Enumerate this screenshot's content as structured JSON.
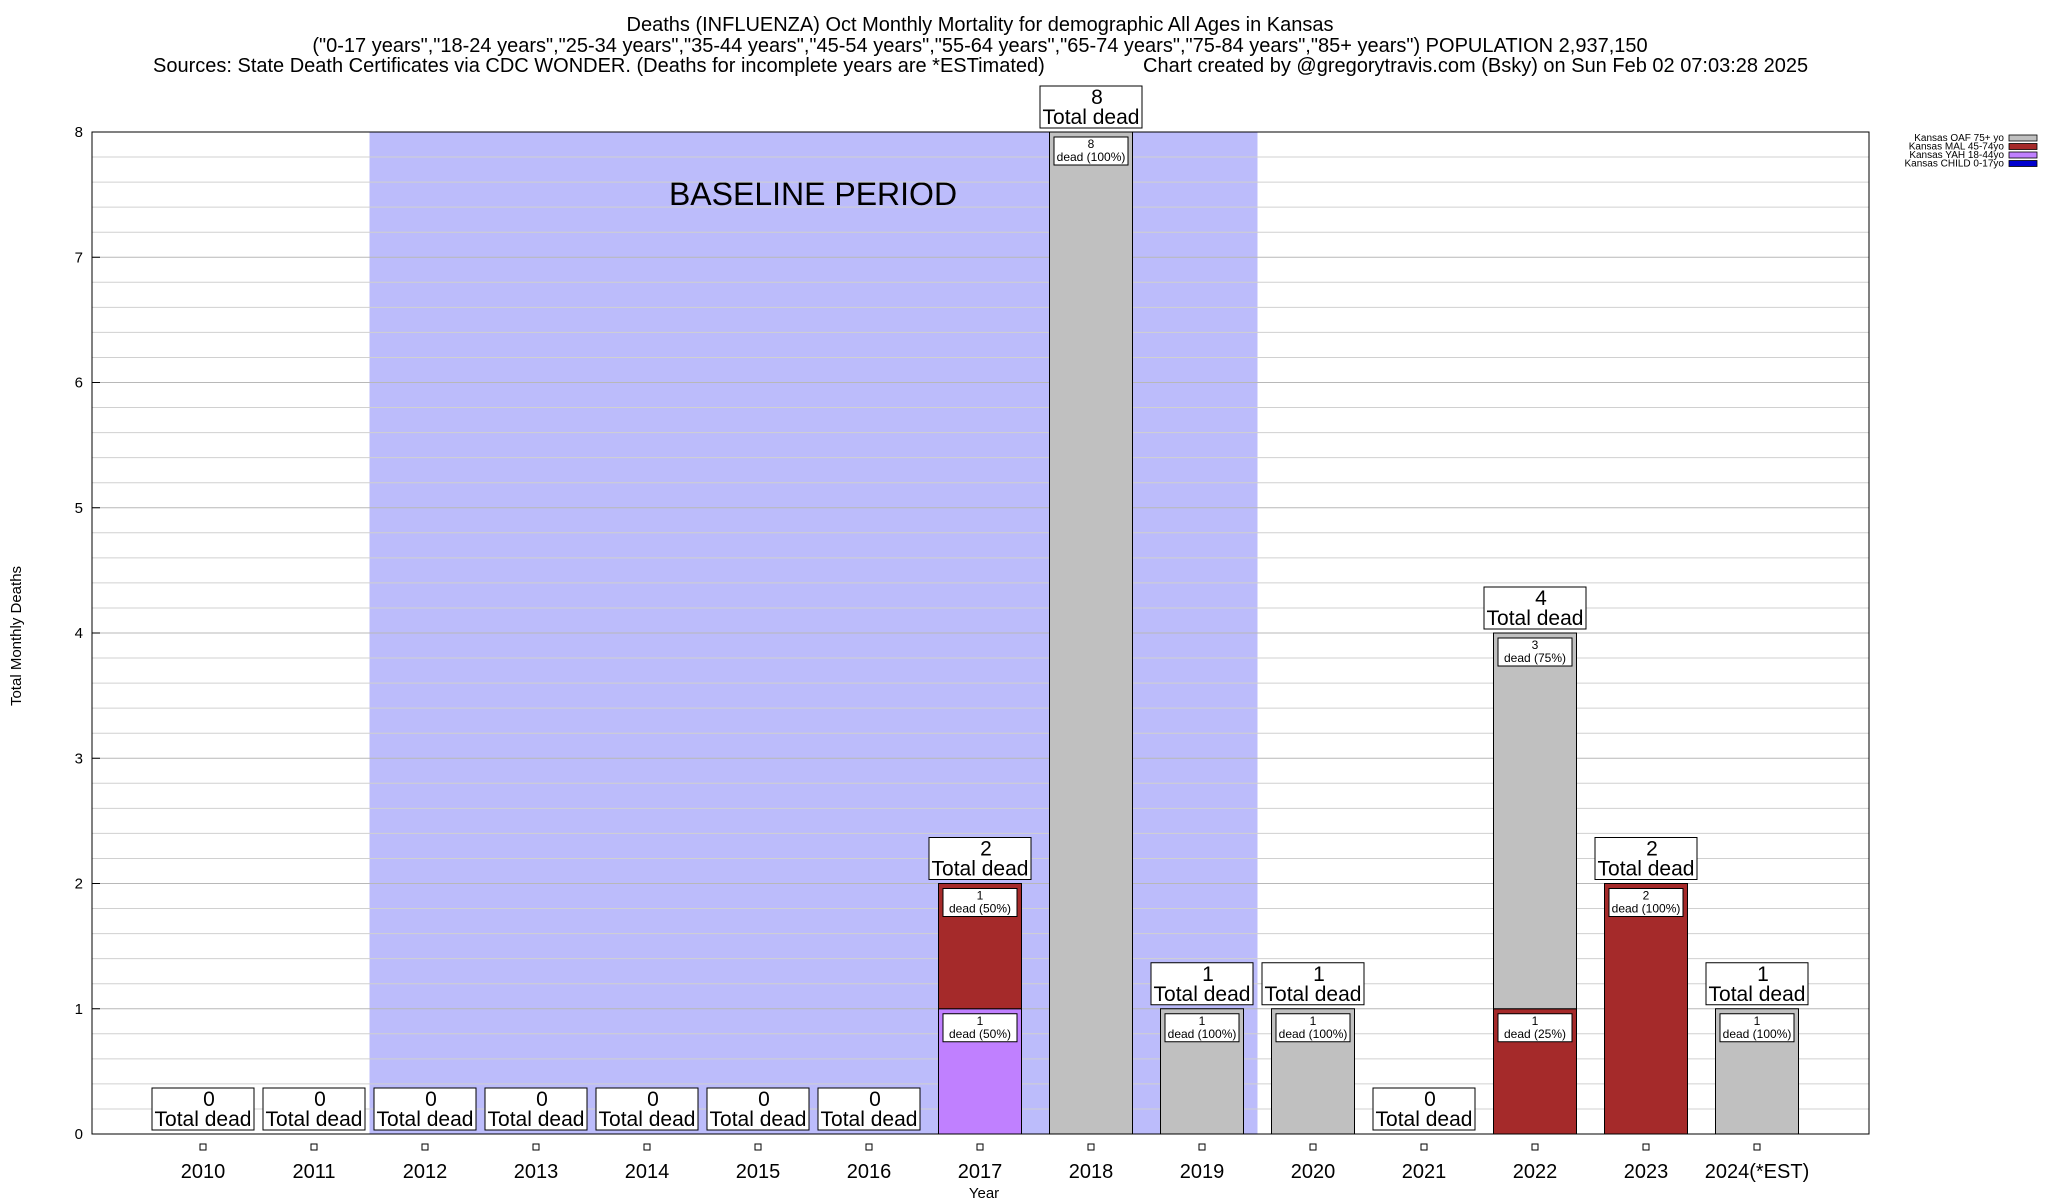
{
  "chart_data": {
    "type": "bar",
    "title_lines": [
      "Deaths (INFLUENZA) Oct Monthly Mortality for demographic All Ages in Kansas",
      "(\"0-17 years\",\"18-24 years\",\"25-34 years\",\"35-44 years\",\"45-54 years\",\"55-64 years\",\"65-74 years\",\"75-84 years\",\"85+ years\") POPULATION 2,937,150"
    ],
    "sources_left": "Sources: State Death Certificates via CDC WONDER. (Deaths for incomplete years are *ESTimated)",
    "sources_right": "Chart created by @gregorytravis.com (Bsky) on Sun Feb 02 07:03:28 2025",
    "xlabel": "Year",
    "ylabel": "Total Monthly Deaths",
    "ylim": [
      0,
      8
    ],
    "yticks": [
      "0",
      "1",
      "2",
      "3",
      "4",
      "5",
      "6",
      "7",
      "8"
    ],
    "categories": [
      "2010",
      "2011",
      "2012",
      "2013",
      "2014",
      "2015",
      "2016",
      "2017",
      "2018",
      "2019",
      "2020",
      "2021",
      "2022",
      "2023",
      "2024(*EST)"
    ],
    "stack_order": [
      "Kansas CHILD 0-17yo",
      "Kansas YAH 18-44yo",
      "Kansas MAL 45-74yo",
      "Kansas OAF 75+ yo"
    ],
    "series": [
      {
        "name": "Kansas OAF 75+ yo",
        "color": "#c0c0c0",
        "values": [
          0,
          0,
          0,
          0,
          0,
          0,
          0,
          0,
          8,
          1,
          1,
          0,
          3,
          0,
          1
        ]
      },
      {
        "name": "Kansas MAL 45-74yo",
        "color": "#a52a2a",
        "values": [
          0,
          0,
          0,
          0,
          0,
          0,
          0,
          1,
          0,
          0,
          0,
          0,
          1,
          2,
          0
        ]
      },
      {
        "name": "Kansas YAH 18-44yo",
        "color": "#c080ff",
        "values": [
          0,
          0,
          0,
          0,
          0,
          0,
          0,
          1,
          0,
          0,
          0,
          0,
          0,
          0,
          0
        ]
      },
      {
        "name": "Kansas CHILD 0-17yo",
        "color": "#0000cd",
        "values": [
          0,
          0,
          0,
          0,
          0,
          0,
          0,
          0,
          0,
          0,
          0,
          0,
          0,
          0,
          0
        ]
      }
    ],
    "totals": [
      0,
      0,
      0,
      0,
      0,
      0,
      0,
      2,
      8,
      1,
      1,
      0,
      4,
      2,
      1
    ],
    "total_label": "Total dead",
    "segment_labels": {
      "2017": [
        "1\ndead (50%)",
        "1\ndead (50%)"
      ],
      "2018": [
        "8\ndead (100%)"
      ],
      "2019": [
        "1\ndead (100%)"
      ],
      "2020": [
        "1\ndead (100%)"
      ],
      "2022": [
        "1\ndead (25%)",
        "3\ndead (75%)"
      ],
      "2023": [
        "2\ndead (100%)"
      ],
      "2024(*EST)": [
        "1\ndead (100%)"
      ]
    },
    "baseline": {
      "label": "BASELINE PERIOD",
      "from": "2012",
      "to": "2019",
      "color": "#bcbcfb"
    },
    "grid": true,
    "legend_position": "top-right"
  }
}
